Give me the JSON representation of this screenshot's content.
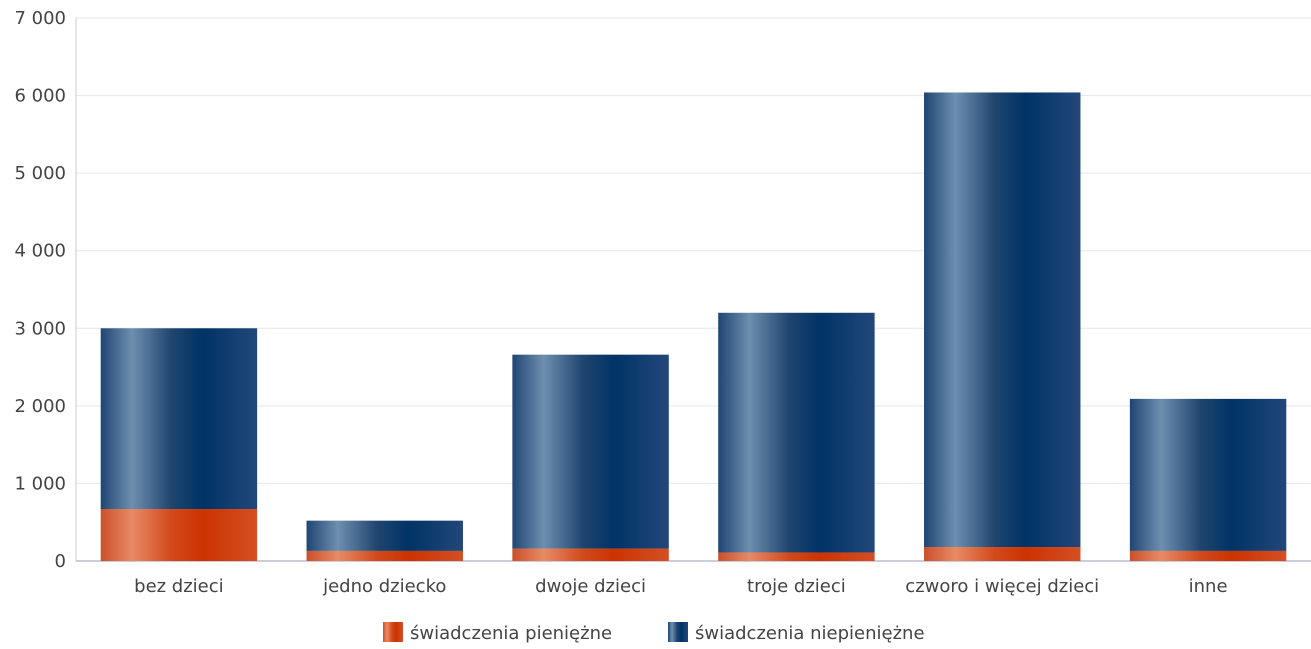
{
  "chart_data": {
    "type": "bar",
    "stacked": true,
    "categories": [
      "bez dzieci",
      "jedno dziecko",
      "dwoje dzieci",
      "troje dzieci",
      "czworo i więcej dzieci",
      "inne"
    ],
    "series": [
      {
        "name": "świadczenia pieniężne",
        "color": "#cc3300",
        "values": [
          670,
          130,
          160,
          110,
          180,
          130
        ]
      },
      {
        "name": "świadczenia niepieniężne",
        "color": "#003366",
        "values": [
          2330,
          390,
          2500,
          3090,
          5860,
          1960
        ]
      }
    ],
    "y_ticks": [
      "0",
      "1 000",
      "2 000",
      "3 000",
      "4 000",
      "5 000",
      "6 000",
      "7 000"
    ],
    "ylim": [
      0,
      7000
    ],
    "grid": true,
    "legend_position": "bottom"
  }
}
